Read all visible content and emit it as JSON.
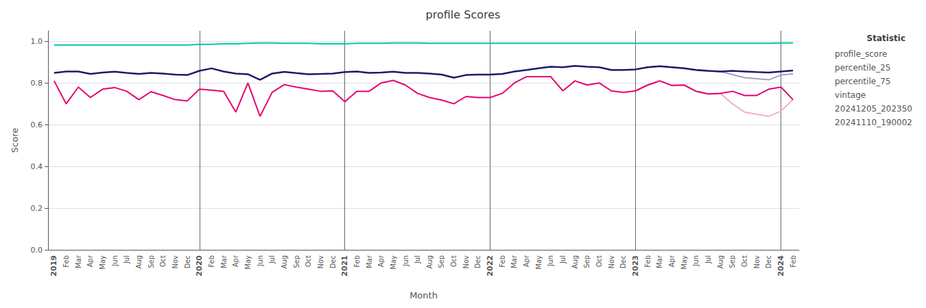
{
  "chart_data": {
    "type": "line",
    "title": "profile Scores",
    "x_label": "Month",
    "y_label": "Score",
    "categories": [
      "2019",
      "Feb",
      "Mar",
      "Apr",
      "May",
      "Jun",
      "Jul",
      "Aug",
      "Sep",
      "Oct",
      "Nov",
      "Dec",
      "2020",
      "Feb",
      "Mar",
      "Apr",
      "May",
      "Jun",
      "Jul",
      "Aug",
      "Sep",
      "Oct",
      "Nov",
      "Dec",
      "2021",
      "Feb",
      "Mar",
      "Apr",
      "May",
      "Jun",
      "Jul",
      "Aug",
      "Sep",
      "Oct",
      "Nov",
      "Dec",
      "2022",
      "Feb",
      "Mar",
      "Apr",
      "May",
      "Jun",
      "Jul",
      "Aug",
      "Sep",
      "Oct",
      "Nov",
      "Dec",
      "2023",
      "Feb",
      "Mar",
      "Apr",
      "May",
      "Jun",
      "Jul",
      "Aug",
      "Sep",
      "Oct",
      "Nov",
      "Dec",
      "2024",
      "Feb"
    ],
    "series": [
      {
        "name": "profile_score",
        "color": "#1b1b6b",
        "values": [
          0.848,
          0.855,
          0.855,
          0.843,
          0.85,
          0.854,
          0.848,
          0.843,
          0.848,
          0.845,
          0.84,
          0.838,
          0.858,
          0.87,
          0.855,
          0.845,
          0.842,
          0.815,
          0.845,
          0.853,
          0.847,
          0.842,
          0.843,
          0.845,
          0.852,
          0.855,
          0.848,
          0.85,
          0.854,
          0.848,
          0.848,
          0.845,
          0.84,
          0.825,
          0.838,
          0.84,
          0.84,
          0.843,
          0.855,
          0.862,
          0.87,
          0.878,
          0.875,
          0.882,
          0.878,
          0.875,
          0.862,
          0.862,
          0.865,
          0.875,
          0.88,
          0.875,
          0.87,
          0.862,
          0.858,
          0.855,
          0.858,
          0.855,
          0.852,
          0.85,
          0.855,
          0.86
        ]
      },
      {
        "name": "percentile_25",
        "color": "#e8006e",
        "values": [
          0.81,
          0.7,
          0.78,
          0.73,
          0.77,
          0.778,
          0.76,
          0.72,
          0.758,
          0.74,
          0.72,
          0.714,
          0.77,
          0.765,
          0.76,
          0.66,
          0.8,
          0.64,
          0.755,
          0.792,
          0.78,
          0.77,
          0.76,
          0.762,
          0.71,
          0.76,
          0.76,
          0.8,
          0.812,
          0.79,
          0.75,
          0.73,
          0.718,
          0.7,
          0.735,
          0.73,
          0.73,
          0.75,
          0.8,
          0.83,
          0.83,
          0.83,
          0.762,
          0.81,
          0.79,
          0.8,
          0.762,
          0.755,
          0.762,
          0.79,
          0.81,
          0.788,
          0.79,
          0.76,
          0.747,
          0.75,
          0.76,
          0.74,
          0.74,
          0.77,
          0.78,
          0.72
        ]
      },
      {
        "name": "percentile_75",
        "color": "#00c9a7",
        "values": [
          0.982,
          0.982,
          0.982,
          0.982,
          0.982,
          0.982,
          0.982,
          0.982,
          0.982,
          0.982,
          0.982,
          0.982,
          0.985,
          0.985,
          0.988,
          0.988,
          0.99,
          0.992,
          0.992,
          0.99,
          0.99,
          0.99,
          0.988,
          0.988,
          0.988,
          0.99,
          0.99,
          0.99,
          0.992,
          0.992,
          0.992,
          0.99,
          0.99,
          0.99,
          0.99,
          0.99,
          0.99,
          0.99,
          0.99,
          0.99,
          0.99,
          0.99,
          0.99,
          0.99,
          0.99,
          0.99,
          0.99,
          0.99,
          0.99,
          0.99,
          0.99,
          0.99,
          0.99,
          0.99,
          0.99,
          0.99,
          0.99,
          0.99,
          0.99,
          0.99,
          0.992,
          0.992
        ]
      },
      {
        "name": "vintage",
        "color": "#f0b0c8",
        "values": [
          null,
          null,
          null,
          null,
          null,
          null,
          null,
          null,
          null,
          null,
          null,
          null,
          null,
          null,
          null,
          null,
          null,
          null,
          null,
          null,
          null,
          null,
          null,
          null,
          null,
          null,
          null,
          null,
          null,
          null,
          null,
          null,
          null,
          null,
          null,
          null,
          null,
          null,
          null,
          null,
          null,
          null,
          null,
          null,
          null,
          null,
          null,
          null,
          0.762,
          0.79,
          0.81,
          0.788,
          0.79,
          0.76,
          0.747,
          0.75,
          0.7,
          0.66,
          0.65,
          0.64,
          0.665,
          0.72
        ]
      },
      {
        "name": "vintage",
        "color": "#a0a0c0",
        "values": [
          null,
          null,
          null,
          null,
          null,
          null,
          null,
          null,
          null,
          null,
          null,
          null,
          null,
          null,
          null,
          null,
          null,
          null,
          null,
          null,
          null,
          null,
          null,
          null,
          null,
          null,
          null,
          null,
          null,
          null,
          null,
          null,
          null,
          null,
          null,
          null,
          null,
          null,
          null,
          null,
          null,
          null,
          null,
          null,
          null,
          null,
          null,
          null,
          0.865,
          0.875,
          0.88,
          0.875,
          0.87,
          0.862,
          0.858,
          0.855,
          0.84,
          0.825,
          0.82,
          0.815,
          0.838,
          0.843
        ]
      },
      {
        "name": "20241205_202350",
        "color": "#111111",
        "line_style": "solid",
        "values": [
          null,
          null,
          null,
          null,
          null,
          null,
          null,
          null,
          null,
          null,
          null,
          null,
          null,
          null,
          null,
          null,
          null,
          null,
          null,
          null,
          null,
          null,
          null,
          null,
          null,
          null,
          null,
          null,
          null,
          null,
          null,
          null,
          null,
          null,
          null,
          null,
          null,
          null,
          null,
          null,
          null,
          null,
          null,
          null,
          null,
          null,
          null,
          null,
          null,
          null,
          null,
          null,
          null,
          null,
          null,
          null,
          null,
          null,
          null,
          null,
          null,
          null
        ]
      },
      {
        "name": "20241110_190002",
        "color": "#111111",
        "line_style": "dashed",
        "values": [
          null,
          null,
          null,
          null,
          null,
          null,
          null,
          null,
          null,
          null,
          null,
          null,
          null,
          null,
          null,
          null,
          null,
          null,
          null,
          null,
          null,
          null,
          null,
          null,
          null,
          null,
          null,
          null,
          null,
          null,
          null,
          null,
          null,
          null,
          null,
          null,
          null,
          null,
          null,
          null,
          null,
          null,
          null,
          null,
          null,
          null,
          null,
          null,
          null,
          null,
          null,
          null,
          null,
          null,
          null,
          null,
          null,
          null,
          null,
          null,
          null,
          null
        ]
      }
    ],
    "vlines": [
      "2020",
      "2021",
      "2022",
      "2023",
      "2024"
    ],
    "ylim": [
      0.0,
      1.05
    ],
    "yticks": [
      {
        "value": 0,
        "label": "0.0"
      },
      0.2,
      0.4,
      0.6,
      0.8,
      {
        "value": 1,
        "label": "1.0"
      }
    ],
    "grid": true,
    "legend": "upper right",
    "legend_title": "Statistic"
  }
}
